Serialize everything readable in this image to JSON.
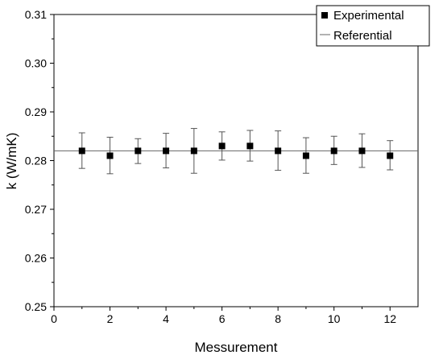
{
  "chart_data": {
    "type": "scatter",
    "xlabel": "Messurement",
    "ylabel": "k (W/mK)",
    "xlim": [
      0,
      13
    ],
    "ylim": [
      0.25,
      0.31
    ],
    "xticks": [
      "0",
      "2",
      "4",
      "6",
      "8",
      "10",
      "12"
    ],
    "yticks": [
      "0.25",
      "0.26",
      "0.27",
      "0.28",
      "0.29",
      "0.30",
      "0.31"
    ],
    "grid": false,
    "legend_position": "top-right",
    "series": [
      {
        "name": "Experimental",
        "marker": "square",
        "color": "#000000",
        "x": [
          1,
          2,
          3,
          4,
          5,
          6,
          7,
          8,
          9,
          10,
          11,
          12
        ],
        "y": [
          0.282,
          0.281,
          0.282,
          0.282,
          0.282,
          0.283,
          0.283,
          0.282,
          0.281,
          0.282,
          0.282,
          0.281
        ],
        "err_low": [
          0.2784,
          0.2773,
          0.2794,
          0.2785,
          0.2774,
          0.2801,
          0.2799,
          0.278,
          0.2774,
          0.2792,
          0.2786,
          0.2781
        ],
        "err_high": [
          0.2857,
          0.2848,
          0.2845,
          0.2856,
          0.2866,
          0.2859,
          0.2862,
          0.2861,
          0.2847,
          0.285,
          0.2855,
          0.2841
        ]
      },
      {
        "name": "Referential",
        "type": "line",
        "color": "#666666",
        "y": 0.282
      }
    ]
  }
}
